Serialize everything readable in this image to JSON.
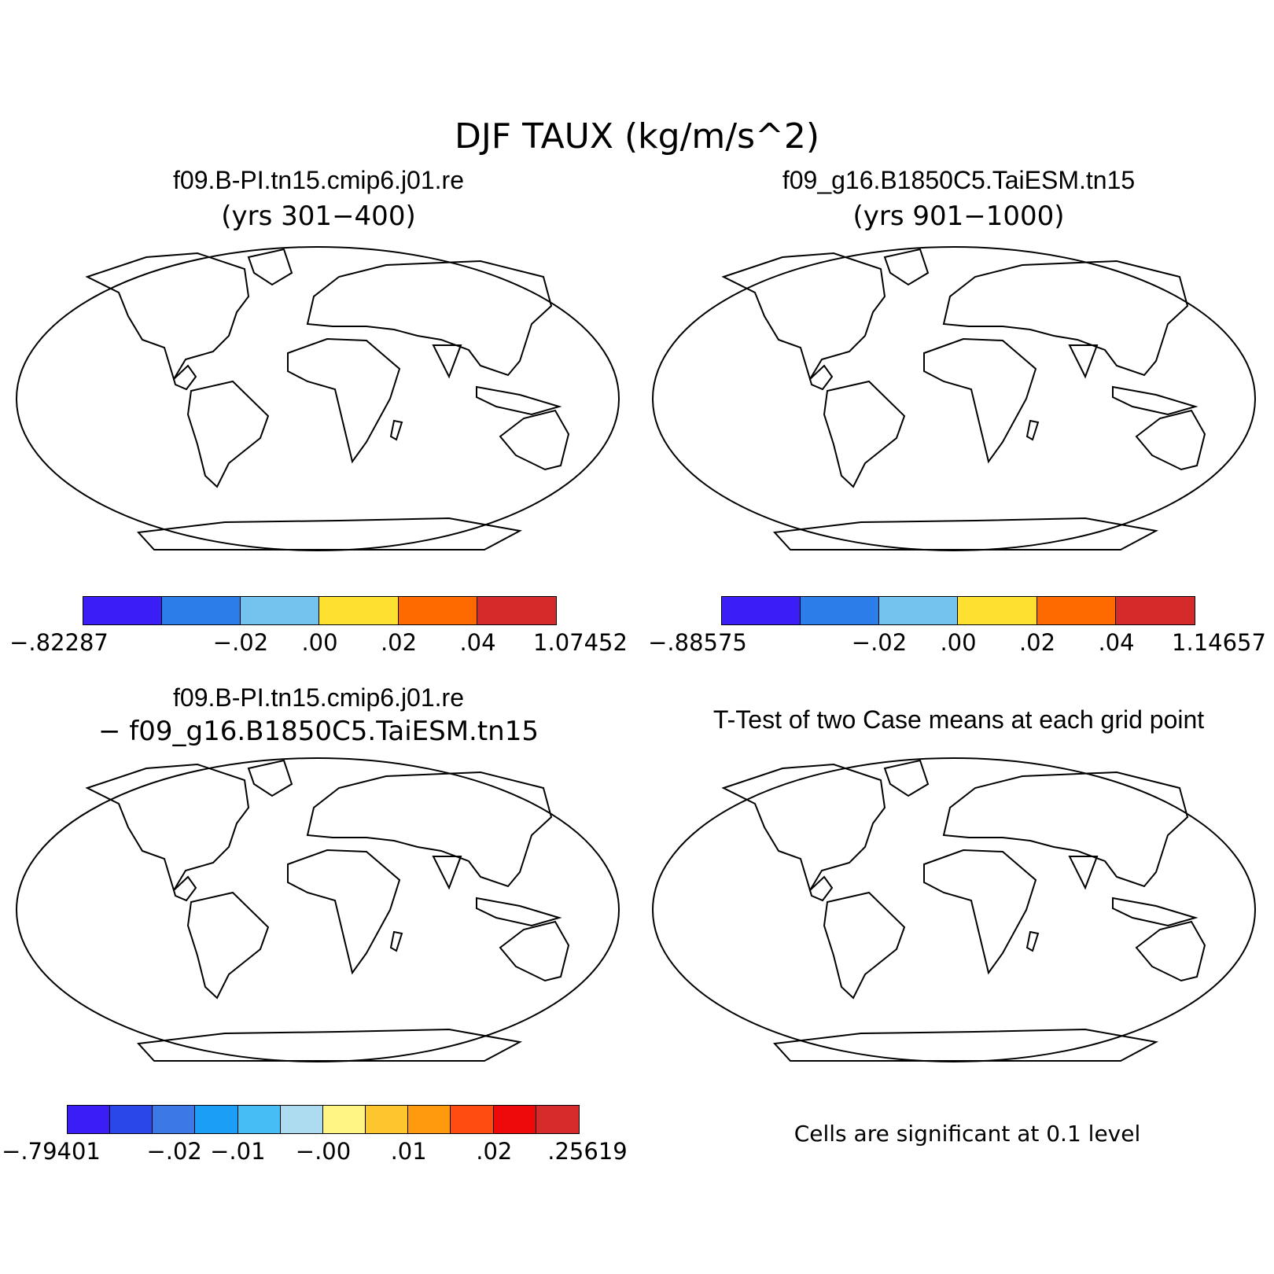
{
  "title": "DJF TAUX (kg/m/s^2)",
  "panels": [
    {
      "name": "case1",
      "title": "f09.B-PI.tn15.cmip6.j01.re",
      "subtitle": "(yrs 301−400)",
      "colorbar": {
        "colors": [
          "#3a1ef5",
          "#2b7de9",
          "#74c2ee",
          "#fde030",
          "#ff6a00",
          "#d52a2a"
        ],
        "labels": [
          "−.82287",
          "−.02",
          ".00",
          ".02",
          ".04",
          "1.07452"
        ]
      }
    },
    {
      "name": "case2",
      "title": "f09_g16.B1850C5.TaiESM.tn15",
      "subtitle": "(yrs 901−1000)",
      "colorbar": {
        "colors": [
          "#3a1ef5",
          "#2b7de9",
          "#74c2ee",
          "#fde030",
          "#ff6a00",
          "#d52a2a"
        ],
        "labels": [
          "−.88575",
          "−.02",
          ".00",
          ".02",
          ".04",
          "1.14657"
        ]
      }
    },
    {
      "name": "difference",
      "title": "f09.B-PI.tn15.cmip6.j01.re",
      "subtitle": "− f09_g16.B1850C5.TaiESM.tn15",
      "colorbar": {
        "colors": [
          "#3a1ef5",
          "#2a48ea",
          "#3c78e6",
          "#1b9ef5",
          "#47bdf5",
          "#addcf1",
          "#fff585",
          "#fdc52e",
          "#ff9a0e",
          "#ff4d12",
          "#ee0a0a",
          "#d62b2b"
        ],
        "labels": [
          "−.79401",
          "−.02",
          "−.01",
          "−.00",
          ".01",
          ".02",
          ".25619"
        ]
      }
    },
    {
      "name": "ttest",
      "title": "T-Test of two Case means at each grid point",
      "note": "Cells are significant at 0.1 level",
      "sig_color": "#ff0000"
    }
  ]
}
